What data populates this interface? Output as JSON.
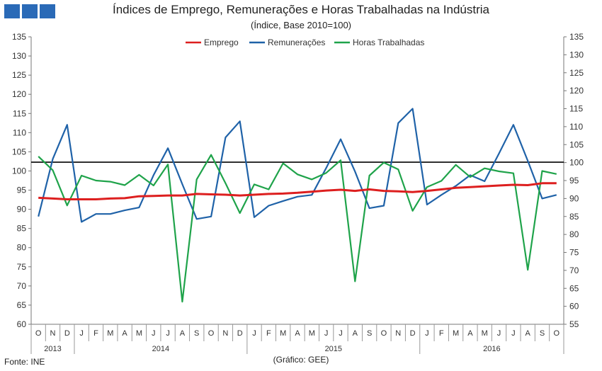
{
  "colors": {
    "emprego": "#dd1f1f",
    "remuneracoes": "#1f62a8",
    "horas": "#1fa34a",
    "reference": "#000000",
    "logo": "#2a6ab7"
  },
  "source_label": "Fonte: INE",
  "credit_label": "(Gráfico: GEE)",
  "chart_data": {
    "type": "line",
    "title": "Índices de Emprego, Remunerações e Horas Trabalhadas na Indústria",
    "subtitle": "(Índice, Base 2010=100)",
    "legend_position": "top-center",
    "grid": false,
    "categories": [
      "O",
      "N",
      "D",
      "J",
      "F",
      "M",
      "A",
      "M",
      "J",
      "J",
      "A",
      "S",
      "O",
      "N",
      "D",
      "J",
      "F",
      "M",
      "A",
      "M",
      "J",
      "J",
      "A",
      "S",
      "O",
      "N",
      "D",
      "J",
      "F",
      "M",
      "A",
      "M",
      "J",
      "J",
      "A",
      "S",
      "O"
    ],
    "years": [
      {
        "label": "2013",
        "start": 0,
        "end": 2
      },
      {
        "label": "2014",
        "start": 3,
        "end": 14
      },
      {
        "label": "2015",
        "start": 15,
        "end": 26
      },
      {
        "label": "2016",
        "start": 27,
        "end": 36
      }
    ],
    "y_left": {
      "min": 60,
      "max": 135,
      "step": 5
    },
    "y_right": {
      "min": 55,
      "max": 135,
      "step": 5
    },
    "reference_line": {
      "value": 102.3,
      "axis": "left"
    },
    "series": [
      {
        "name": "Emprego",
        "color_key": "emprego",
        "axis": "left",
        "values": [
          93.0,
          92.8,
          92.6,
          92.6,
          92.6,
          92.8,
          92.9,
          93.4,
          93.5,
          93.6,
          93.6,
          94.0,
          93.9,
          93.8,
          93.6,
          93.8,
          94.0,
          94.1,
          94.3,
          94.6,
          94.9,
          95.1,
          94.8,
          95.2,
          94.8,
          94.7,
          94.5,
          94.8,
          95.2,
          95.6,
          95.8,
          96.0,
          96.2,
          96.4,
          96.3,
          96.8,
          96.8
        ]
      },
      {
        "name": "Remunerações",
        "color_key": "remuneracoes",
        "axis": "right",
        "values": [
          85.0,
          101.0,
          110.5,
          83.5,
          85.7,
          85.7,
          86.7,
          87.5,
          96.5,
          104.0,
          94.0,
          84.3,
          85.0,
          107.0,
          111.5,
          84.8,
          88.0,
          89.3,
          90.5,
          91.0,
          98.5,
          106.5,
          97.5,
          87.3,
          88.0,
          111.0,
          115.0,
          88.3,
          91.0,
          93.5,
          96.5,
          94.8,
          102.5,
          110.5,
          100.5,
          90.0,
          91.0
        ]
      },
      {
        "name": "Horas Trabalhadas",
        "color_key": "horas",
        "axis": "left",
        "values": [
          103.8,
          100.2,
          91.0,
          98.8,
          97.5,
          97.2,
          96.3,
          99.0,
          96.2,
          101.7,
          65.9,
          97.8,
          104.2,
          96.8,
          89.0,
          96.5,
          95.2,
          102.0,
          99.1,
          97.8,
          99.5,
          102.8,
          71.2,
          98.8,
          102.2,
          100.4,
          89.6,
          95.8,
          97.4,
          101.6,
          98.4,
          100.7,
          99.9,
          99.4,
          74.2,
          100.0,
          99.2
        ]
      }
    ]
  }
}
